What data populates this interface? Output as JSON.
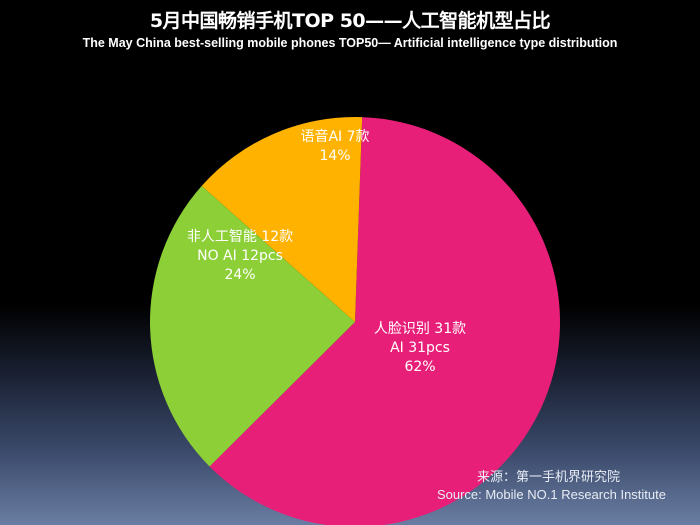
{
  "colors": {
    "background": "#000000",
    "face_recognition": "#e81f78",
    "no_ai": "#8ccf36",
    "voice_ai": "#ffb300",
    "text": "#ffffff"
  },
  "chart_data": {
    "type": "pie",
    "title": "5月中国畅销手机TOP 50——人工智能机型占比",
    "subtitle": "The  May  China  best-selling  mobile  phones  TOP50— Artificial intelligence type distribution",
    "slices": [
      {
        "key": "face_recognition",
        "label_cn": "人脸识别 31款",
        "label_en": "AI 31pcs",
        "value": 31,
        "percent": "62%"
      },
      {
        "key": "no_ai",
        "label_cn": "非人工智能 12款",
        "label_en": "NO AI 12pcs",
        "value": 12,
        "percent": "24%"
      },
      {
        "key": "voice_ai",
        "label_cn": "语音AI  7款",
        "label_en": "",
        "value": 7,
        "percent": "14%"
      }
    ]
  },
  "source": {
    "line_cn": "来源：第一手机界研究院",
    "line_en": "Source: Mobile NO.1 Research Institute"
  }
}
